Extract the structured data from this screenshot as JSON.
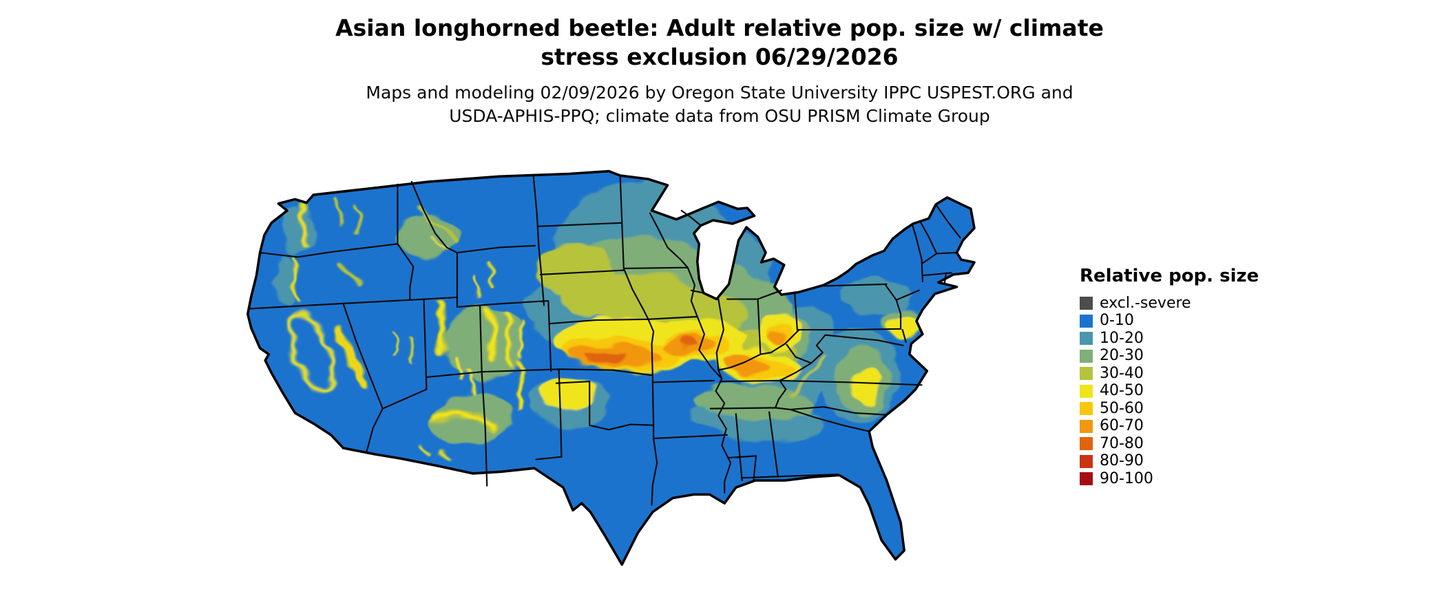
{
  "header": {
    "title_line1": "Asian longhorned beetle: Adult relative pop. size w/ climate",
    "title_line2": "stress exclusion 06/29/2026",
    "subtitle_line1": "Maps and modeling 02/09/2026 by Oregon State University IPPC USPEST.ORG and",
    "subtitle_line2": "USDA-APHIS-PPQ; climate data from OSU PRISM Climate Group"
  },
  "legend": {
    "title": "Relative pop. size",
    "items": [
      {
        "label": "excl.-severe",
        "color": "#4d4d4d"
      },
      {
        "label": "0-10",
        "color": "#1c73cd"
      },
      {
        "label": "10-20",
        "color": "#4b96ad"
      },
      {
        "label": "20-30",
        "color": "#7fae78"
      },
      {
        "label": "30-40",
        "color": "#b6c33a"
      },
      {
        "label": "40-50",
        "color": "#f0e51a"
      },
      {
        "label": "50-60",
        "color": "#f8c80c"
      },
      {
        "label": "60-70",
        "color": "#f29711"
      },
      {
        "label": "70-80",
        "color": "#e0640e"
      },
      {
        "label": "80-90",
        "color": "#cc3311"
      },
      {
        "label": "90-100",
        "color": "#a50d15"
      }
    ]
  },
  "chart_data": {
    "type": "choropleth_map",
    "title": "Asian longhorned beetle: Adult relative pop. size w/ climate stress exclusion 06/29/2026",
    "map_region": "Continental United States (lower 48 states, state boundaries shown)",
    "variable": "Relative pop. size (classed raster)",
    "date_shown": "06/29/2026",
    "model_date": "02/09/2026",
    "credits": "Oregon State University IPPC USPEST.ORG and USDA-APHIS-PPQ; climate data from OSU PRISM Climate Group",
    "classes": [
      "excl.-severe",
      "0-10",
      "10-20",
      "20-30",
      "30-40",
      "40-50",
      "50-60",
      "60-70",
      "70-80",
      "80-90",
      "90-100"
    ],
    "class_colors": [
      "#4d4d4d",
      "#1c73cd",
      "#4b96ad",
      "#7fae78",
      "#b6c33a",
      "#f0e51a",
      "#f8c80c",
      "#f29711",
      "#e0640e",
      "#cc3311",
      "#a50d15"
    ],
    "regional_pattern": [
      {
        "region": "Central Kansas through northern Missouri, central Illinois, Indiana, western Ohio and Kentucky (warm core belt)",
        "value_range": "50-80"
      },
      {
        "region": "Nebraska, Iowa, southern Minnesota, southern Wisconsin, lower Michigan, Ohio Valley fringe, Texas panhandle patch",
        "value_range": "20-50"
      },
      {
        "region": "Eastern Dakotas, upper Midwest, Appalachians and western Pennsylvania, Tennessee-Alabama-Georgia belt, Virginia-North Carolina piedmont, New Jersey / SE Pennsylvania",
        "value_range": "10-30"
      },
      {
        "region": "Western mountain ranges (Cascades, Sierra Nevada,California Central Valley rim, Wasatch, Colorado Rockies, Sangre de Cristo, Mogollon Rim, northern Idaho/Montana)",
        "value_range": "30-60 narrow filaments"
      },
      {
        "region": "Pacific coast, Great Basin and desert Southwest lowlands, most of Texas, Gulf Coast, Florida, northern Maine",
        "value_range": "0-10"
      }
    ]
  }
}
